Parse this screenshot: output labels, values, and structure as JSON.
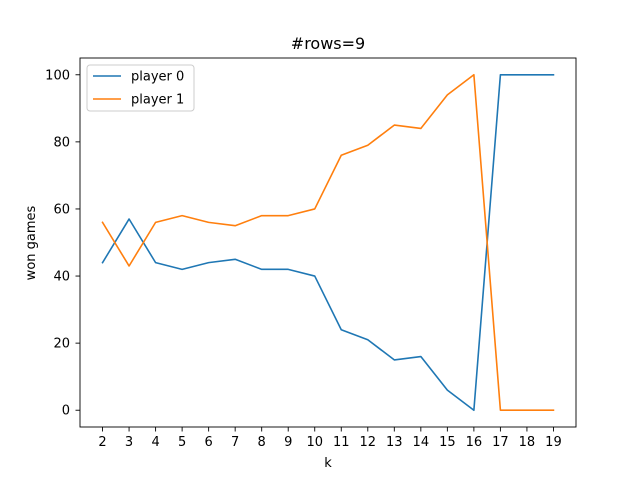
{
  "chart_data": {
    "type": "line",
    "title": "#rows=9",
    "xlabel": "k",
    "ylabel": "won games",
    "x": [
      2,
      3,
      4,
      5,
      6,
      7,
      8,
      9,
      10,
      11,
      12,
      13,
      14,
      15,
      16,
      17,
      18,
      19
    ],
    "xlim": [
      1.15,
      19.85
    ],
    "ylim": [
      -5,
      105
    ],
    "xticks": [
      2,
      3,
      4,
      5,
      6,
      7,
      8,
      9,
      10,
      11,
      12,
      13,
      14,
      15,
      16,
      17,
      18,
      19
    ],
    "yticks": [
      0,
      20,
      40,
      60,
      80,
      100
    ],
    "grid": false,
    "legend_position": "top-left",
    "series": [
      {
        "name": "player 0",
        "color": "#1f77b4",
        "values": [
          44,
          57,
          44,
          42,
          44,
          45,
          42,
          42,
          40,
          24,
          21,
          15,
          16,
          6,
          0,
          100,
          100,
          100
        ]
      },
      {
        "name": "player 1",
        "color": "#ff7f0e",
        "values": [
          56,
          43,
          56,
          58,
          56,
          55,
          58,
          58,
          60,
          76,
          79,
          85,
          84,
          94,
          100,
          0,
          0,
          0
        ]
      }
    ]
  }
}
